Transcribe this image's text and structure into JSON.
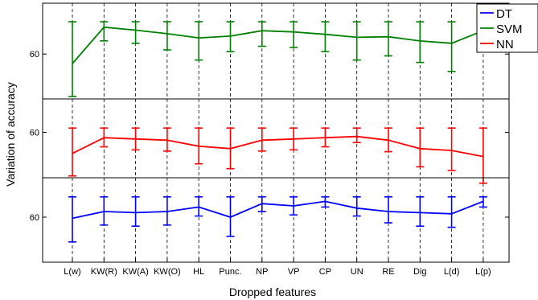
{
  "chart_data": {
    "type": "line",
    "xlabel": "Dropped features",
    "ylabel": "Variation of accuracy",
    "categories": [
      "L(w)",
      "KW(R)",
      "KW(A)",
      "KW(O)",
      "HL",
      "Punc.",
      "NP",
      "VP",
      "CP",
      "UN",
      "RE",
      "Dig",
      "L(d)",
      "L(p)"
    ],
    "grid": "dashed vertical lines at each category",
    "legend": {
      "placement": "top-right",
      "entries": [
        "DT",
        "SVM",
        "NN"
      ]
    },
    "panels": [
      {
        "series": "SVM",
        "color": "#008000",
        "ylim": [
          52.5,
          68.5
        ],
        "y_ticks": [
          60
        ],
        "values": [
          58.4,
          64.5,
          64.0,
          63.4,
          62.7,
          63.0,
          63.9,
          63.7,
          63.3,
          62.8,
          62.9,
          62.2,
          61.8,
          63.9
        ],
        "lower": [
          52.9,
          62.2,
          61.8,
          60.7,
          59.0,
          60.4,
          61.3,
          61.1,
          60.4,
          59.0,
          59.7,
          58.6,
          57.1,
          61.6
        ],
        "upper": [
          65.4,
          65.4,
          65.4,
          65.4,
          65.4,
          65.4,
          65.4,
          65.4,
          65.4,
          65.4,
          65.4,
          65.4,
          65.4,
          65.4
        ]
      },
      {
        "series": "NN",
        "color": "#ff0000",
        "ylim": [
          52.5,
          65.5
        ],
        "y_ticks": [
          60
        ],
        "values": [
          56.5,
          59.1,
          58.9,
          58.7,
          57.7,
          57.3,
          58.7,
          58.9,
          59.1,
          59.3,
          58.7,
          57.3,
          57.0,
          56.0
        ],
        "lower": [
          52.8,
          57.6,
          57.1,
          56.9,
          54.8,
          54.0,
          56.9,
          57.1,
          57.6,
          58.3,
          56.8,
          54.3,
          53.7,
          51.6
        ],
        "upper": [
          60.7,
          60.7,
          60.7,
          60.7,
          60.7,
          60.7,
          60.7,
          60.7,
          60.7,
          60.7,
          60.7,
          60.7,
          60.7,
          60.7
        ]
      },
      {
        "series": "DT",
        "color": "#0000ff",
        "ylim": [
          56.0,
          63.5
        ],
        "y_ticks": [
          60
        ],
        "values": [
          59.9,
          60.5,
          60.4,
          60.5,
          60.9,
          60.0,
          61.2,
          61.0,
          61.4,
          60.8,
          60.5,
          60.4,
          60.3,
          61.4
        ],
        "lower": [
          57.8,
          59.3,
          59.2,
          59.3,
          60.1,
          58.3,
          60.5,
          60.2,
          60.9,
          60.1,
          59.5,
          59.2,
          59.1,
          60.9
        ],
        "upper": [
          61.8,
          61.8,
          61.8,
          61.8,
          61.8,
          61.8,
          61.8,
          61.8,
          61.8,
          61.8,
          61.8,
          61.8,
          61.8,
          61.8
        ]
      }
    ]
  }
}
